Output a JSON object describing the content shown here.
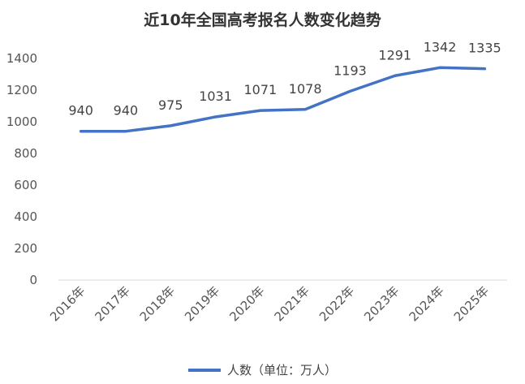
{
  "chart_data": {
    "type": "line",
    "title": "近10年全国高考报名人数变化趋势",
    "categories": [
      "2016年",
      "2017年",
      "2018年",
      "2019年",
      "2020年",
      "2021年",
      "2022年",
      "2023年",
      "2024年",
      "2025年"
    ],
    "series": [
      {
        "name": "人数（单位：万人）",
        "values": [
          940,
          940,
          975,
          1031,
          1071,
          1078,
          1193,
          1291,
          1342,
          1335
        ]
      }
    ],
    "data_labels": [
      "940",
      "940",
      "975",
      "1031",
      "1071",
      "1078",
      "1193",
      "1291",
      "1342",
      "1335"
    ],
    "ylim": [
      0,
      1400
    ],
    "yticks": [
      "0",
      "200",
      "400",
      "600",
      "800",
      "1000",
      "1200",
      "1400"
    ],
    "xlabel": "",
    "ylabel": "",
    "grid": false,
    "legend_position": "bottom",
    "line_color": "#4472C4"
  }
}
